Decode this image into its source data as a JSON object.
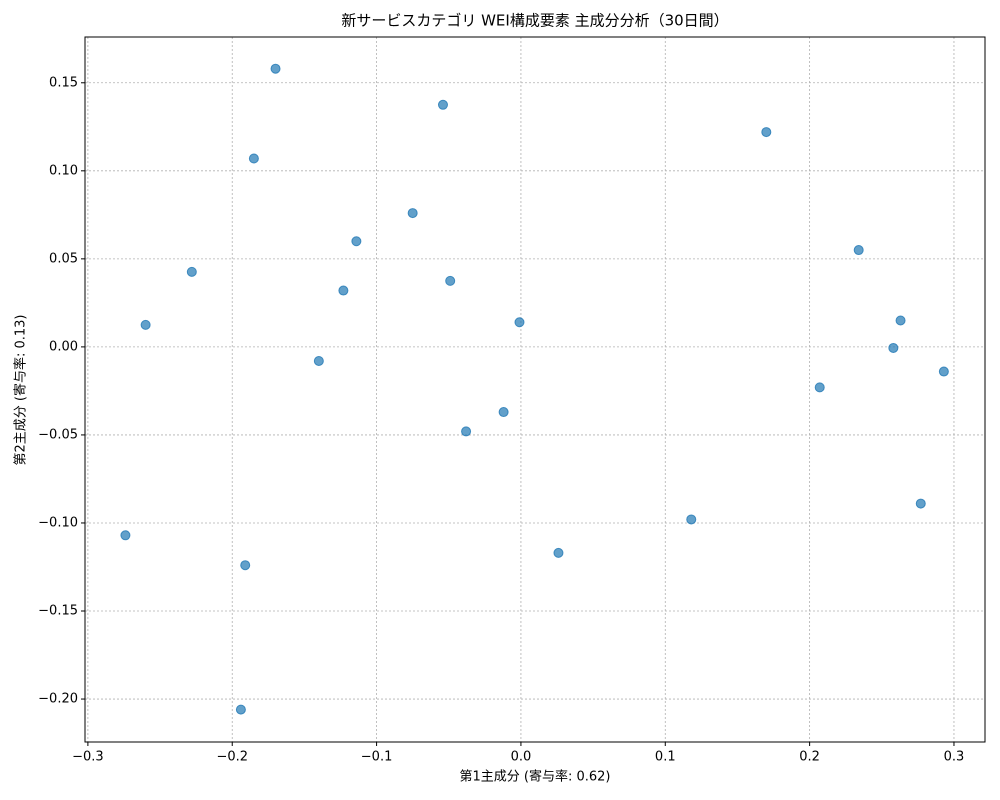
{
  "chart_data": {
    "type": "scatter",
    "title": "新サービスカテゴリ WEI構成要素 主成分分析（30日間）",
    "xlabel": "第1主成分 (寄与率: 0.62)",
    "ylabel": "第2主成分 (寄与率: 0.13)",
    "color": "#1f77b4",
    "grid": true,
    "x": [
      -0.17,
      -0.054,
      -0.185,
      0.17,
      -0.075,
      -0.114,
      0.234,
      -0.228,
      -0.123,
      -0.049,
      -0.26,
      -0.001,
      0.263,
      0.258,
      -0.14,
      0.293,
      0.207,
      -0.012,
      -0.038,
      0.277,
      0.118,
      -0.274,
      0.026,
      -0.191,
      -0.194
    ],
    "values": [
      0.158,
      0.1375,
      0.107,
      0.122,
      0.076,
      0.06,
      0.055,
      0.0426,
      0.032,
      0.0375,
      0.0125,
      0.014,
      0.015,
      -0.0006,
      -0.008,
      -0.014,
      -0.023,
      -0.037,
      -0.048,
      -0.089,
      -0.098,
      -0.107,
      -0.117,
      -0.124,
      -0.206
    ],
    "xlim": [
      -0.302,
      0.3215
    ],
    "ylim": [
      -0.2244,
      0.176
    ],
    "xticks": [
      {
        "value": -0.3,
        "label": "−0.3"
      },
      {
        "value": -0.2,
        "label": "−0.2"
      },
      {
        "value": -0.1,
        "label": "−0.1"
      },
      {
        "value": 0,
        "label": "0.0"
      },
      0.1,
      0.2,
      0.3
    ],
    "yticks": [
      {
        "value": -0.2,
        "label": "−0.20"
      },
      {
        "value": -0.15,
        "label": "−0.15"
      },
      {
        "value": -0.1,
        "label": "−0.10"
      },
      {
        "value": -0.05,
        "label": "−0.05"
      },
      {
        "value": 0,
        "label": "0.00"
      },
      0.05,
      {
        "value": 0.1,
        "label": "0.10"
      },
      0.15
    ]
  }
}
